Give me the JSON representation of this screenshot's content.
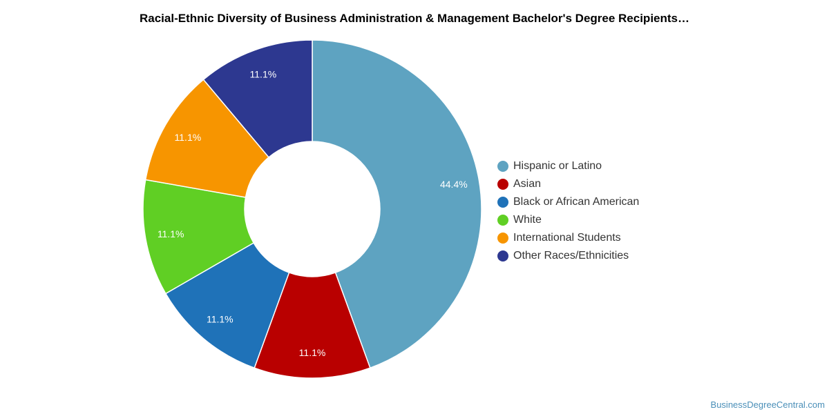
{
  "chart_data": {
    "type": "pie",
    "donut": true,
    "title": "Racial-Ethnic Diversity of Business Administration & Management Bachelor's Degree Recipients…",
    "legend_position": "right",
    "series": [
      {
        "name": "Hispanic or Latino",
        "value": 44.4,
        "label": "44.4%",
        "color": "#5ea3c1"
      },
      {
        "name": "Asian",
        "value": 11.1,
        "label": "11.1%",
        "color": "#b90000"
      },
      {
        "name": "Black or African American",
        "value": 11.1,
        "label": "11.1%",
        "color": "#1f72b8"
      },
      {
        "name": "White",
        "value": 11.1,
        "label": "11.1%",
        "color": "#60cf24"
      },
      {
        "name": "International Students",
        "value": 11.1,
        "label": "11.1%",
        "color": "#f79500"
      },
      {
        "name": "Other Races/Ethnicities",
        "value": 11.1,
        "label": "11.1%",
        "color": "#2d3890"
      }
    ]
  },
  "footer": {
    "credit": "BusinessDegreeCentral.com"
  }
}
